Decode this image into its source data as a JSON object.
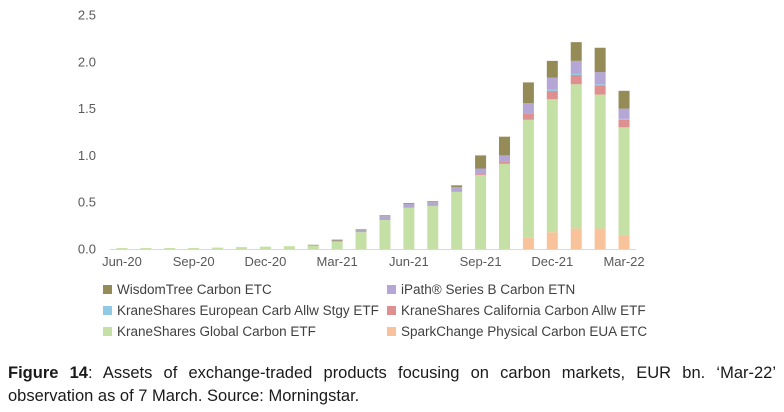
{
  "chart_data": {
    "type": "bar",
    "stacked": true,
    "title": "",
    "xlabel": "",
    "ylabel": "",
    "ylim": [
      0,
      2.5
    ],
    "yticks": [
      0.0,
      0.5,
      1.0,
      1.5,
      2.0,
      2.5
    ],
    "ytick_labels": [
      "0.0",
      "0.5",
      "1.0",
      "1.5",
      "2.0",
      "2.5"
    ],
    "categories": [
      "Jun-20",
      "Jul-20",
      "Aug-20",
      "Sep-20",
      "Oct-20",
      "Nov-20",
      "Dec-20",
      "Jan-21",
      "Feb-21",
      "Mar-21",
      "Apr-21",
      "May-21",
      "Jun-21",
      "Jul-21",
      "Aug-21",
      "Sep-21",
      "Oct-21",
      "Nov-21",
      "Dec-21",
      "Jan-22",
      "Feb-22",
      "Mar-22"
    ],
    "xtick_labels": [
      {
        "index": 0,
        "label": "Jun-20"
      },
      {
        "index": 3,
        "label": "Sep-20"
      },
      {
        "index": 6,
        "label": "Dec-20"
      },
      {
        "index": 9,
        "label": "Mar-21"
      },
      {
        "index": 12,
        "label": "Jun-21"
      },
      {
        "index": 15,
        "label": "Sep-21"
      },
      {
        "index": 18,
        "label": "Dec-21"
      },
      {
        "index": 21,
        "label": "Mar-22"
      }
    ],
    "series": [
      {
        "name": "SparkChange Physical Carbon EUA ETC",
        "color": "#f8c39b",
        "values": [
          0,
          0,
          0,
          0,
          0,
          0,
          0,
          0,
          0,
          0,
          0,
          0,
          0,
          0,
          0,
          0,
          0,
          0.12,
          0.18,
          0.22,
          0.22,
          0.15
        ]
      },
      {
        "name": "KraneShares Global Carbon ETF",
        "color": "#c5e0a5",
        "values": [
          0.01,
          0.01,
          0.01,
          0.01,
          0.015,
          0.02,
          0.025,
          0.03,
          0.04,
          0.08,
          0.18,
          0.31,
          0.44,
          0.46,
          0.61,
          0.79,
          0.91,
          1.26,
          1.42,
          1.54,
          1.43,
          1.15
        ]
      },
      {
        "name": "KraneShares California Carbon Allw ETF",
        "color": "#de8f8f",
        "values": [
          0,
          0,
          0,
          0,
          0,
          0,
          0,
          0,
          0,
          0,
          0,
          0,
          0,
          0,
          0,
          0.01,
          0.02,
          0.07,
          0.09,
          0.1,
          0.1,
          0.08
        ]
      },
      {
        "name": "KraneShares European Carb Allw Stgy ETF",
        "color": "#8ecae6",
        "values": [
          0,
          0,
          0,
          0,
          0,
          0,
          0,
          0,
          0,
          0,
          0,
          0,
          0,
          0,
          0,
          0,
          0,
          0,
          0.01,
          0.01,
          0.01,
          0.01
        ]
      },
      {
        "name": "iPath® Series B Carbon ETN",
        "color": "#b4a7d6",
        "values": [
          0,
          0,
          0,
          0,
          0,
          0,
          0,
          0,
          0,
          0.01,
          0.02,
          0.04,
          0.04,
          0.04,
          0.05,
          0.06,
          0.07,
          0.11,
          0.13,
          0.14,
          0.13,
          0.11
        ]
      },
      {
        "name": "WisdomTree Carbon ETC",
        "color": "#958b57",
        "values": [
          0,
          0,
          0,
          0,
          0,
          0,
          0,
          0,
          0.005,
          0.01,
          0.01,
          0.01,
          0.01,
          0.01,
          0.02,
          0.14,
          0.2,
          0.22,
          0.18,
          0.2,
          0.26,
          0.19
        ]
      }
    ],
    "legend": [
      {
        "label": "WisdomTree Carbon ETC",
        "color": "#958b57"
      },
      {
        "label": "iPath® Series B Carbon ETN",
        "color": "#b4a7d6"
      },
      {
        "label": "KraneShares European Carb Allw Stgy ETF",
        "color": "#8ecae6"
      },
      {
        "label": "KraneShares California Carbon Allw ETF",
        "color": "#de8f8f"
      },
      {
        "label": "KraneShares Global Carbon ETF",
        "color": "#c5e0a5"
      },
      {
        "label": "SparkChange Physical Carbon EUA ETC",
        "color": "#f8c39b"
      }
    ],
    "legend_position": "bottom",
    "grid": false
  },
  "caption": {
    "figure_label": "Figure 14",
    "text": ": Assets of exchange-traded products focusing on carbon markets, EUR bn. ‘Mar-22’ observation as of 7 March. Source: Morningstar."
  }
}
